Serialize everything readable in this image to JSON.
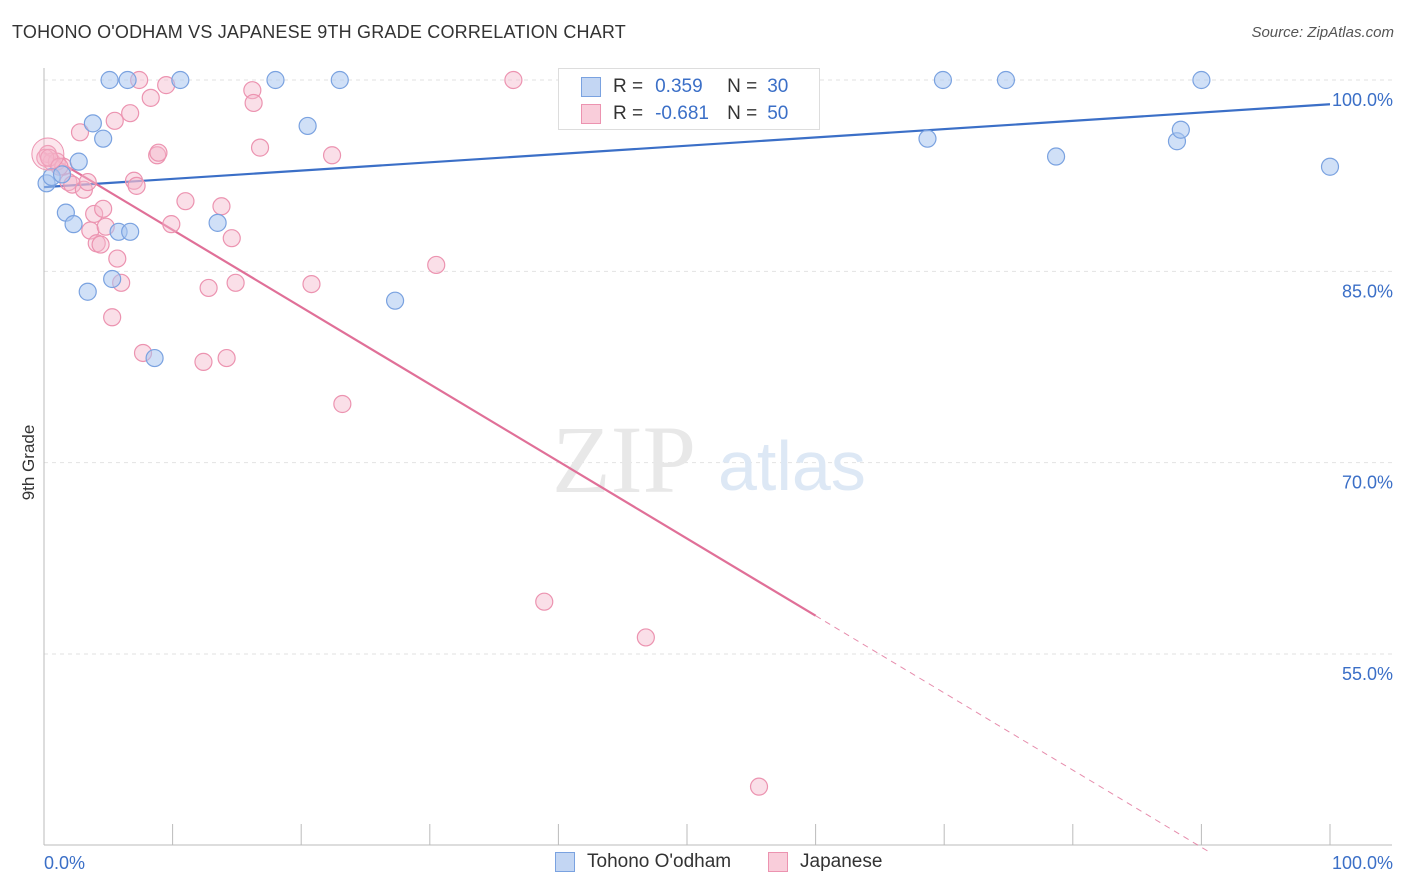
{
  "title": "TOHONO O'ODHAM VS JAPANESE 9TH GRADE CORRELATION CHART",
  "source": "Source: ZipAtlas.com",
  "legend": {
    "series1": {
      "r_label": "R =",
      "r_value": "0.359",
      "n_label": "N =",
      "n_value": "30"
    },
    "series2": {
      "r_label": "R =",
      "r_value": "-0.681",
      "n_label": "N =",
      "n_value": "50"
    }
  },
  "bottom_legend": {
    "series1": "Tohono O'odham",
    "series2": "Japanese"
  },
  "watermark": {
    "zip": "ZIP",
    "atlas": "atlas"
  },
  "colors": {
    "blue": "#3b6fc7",
    "blue_fill": "#aac6f0",
    "pink": "#e07098",
    "pink_fill": "#f5b8cb"
  },
  "chart_data": {
    "type": "scatter",
    "title": "TOHONO O'ODHAM VS JAPANESE 9TH GRADE CORRELATION CHART",
    "xlabel": "",
    "ylabel": "9th Grade",
    "xlim": [
      0,
      100
    ],
    "ylim": [
      40,
      101
    ],
    "x_tick_labels": [
      "0.0%",
      "100.0%"
    ],
    "y_ticks": [
      {
        "value": 100,
        "label": "100.0%"
      },
      {
        "value": 85,
        "label": "85.0%"
      },
      {
        "value": 70,
        "label": "70.0%"
      },
      {
        "value": 55,
        "label": "55.0%"
      }
    ],
    "grid": true,
    "series": [
      {
        "name": "Tohono O'odham",
        "color": "#3b6fc7",
        "trend": {
          "x0": 0,
          "y0": 91.6,
          "x1": 100,
          "y1": 98.1,
          "solid_until": 100
        },
        "points": [
          [
            0.2,
            91.9
          ],
          [
            0.6,
            92.4
          ],
          [
            1.4,
            92.6
          ],
          [
            2.7,
            93.6
          ],
          [
            1.7,
            89.6
          ],
          [
            2.3,
            88.7
          ],
          [
            3.8,
            96.6
          ],
          [
            4.6,
            95.4
          ],
          [
            5.1,
            100
          ],
          [
            6.5,
            100
          ],
          [
            5.3,
            84.4
          ],
          [
            3.4,
            83.4
          ],
          [
            5.8,
            88.1
          ],
          [
            6.7,
            88.1
          ],
          [
            8.6,
            78.2
          ],
          [
            10.6,
            100
          ],
          [
            13.5,
            88.8
          ],
          [
            18.0,
            100
          ],
          [
            20.5,
            96.4
          ],
          [
            23.0,
            100
          ],
          [
            27.3,
            82.7
          ],
          [
            47.5,
            100
          ],
          [
            68.7,
            95.4
          ],
          [
            69.9,
            100
          ],
          [
            74.8,
            100
          ],
          [
            78.7,
            94.0
          ],
          [
            88.1,
            95.2
          ],
          [
            88.4,
            96.1
          ],
          [
            90.0,
            100
          ],
          [
            100,
            93.2
          ]
        ]
      },
      {
        "name": "Japanese",
        "color": "#e07098",
        "trend": {
          "x0": 0,
          "y0": 94.3,
          "x1": 100,
          "y1": 33.8,
          "solid_until": 60
        },
        "points": [
          [
            0.3,
            94.2
          ],
          [
            0.6,
            93.6
          ],
          [
            1.0,
            93.6
          ],
          [
            1.5,
            93.2
          ],
          [
            1.9,
            92.0
          ],
          [
            2.2,
            91.8
          ],
          [
            2.8,
            95.9
          ],
          [
            3.1,
            91.4
          ],
          [
            3.4,
            92.0
          ],
          [
            3.6,
            88.2
          ],
          [
            3.9,
            89.5
          ],
          [
            4.1,
            87.2
          ],
          [
            4.4,
            87.1
          ],
          [
            4.6,
            89.9
          ],
          [
            4.8,
            88.5
          ],
          [
            5.3,
            81.4
          ],
          [
            5.5,
            96.8
          ],
          [
            5.7,
            86.0
          ],
          [
            6.0,
            84.1
          ],
          [
            6.7,
            97.4
          ],
          [
            7.0,
            92.1
          ],
          [
            7.2,
            91.7
          ],
          [
            7.4,
            100
          ],
          [
            7.7,
            78.6
          ],
          [
            8.3,
            98.6
          ],
          [
            8.8,
            94.1
          ],
          [
            8.9,
            94.3
          ],
          [
            9.5,
            99.6
          ],
          [
            9.9,
            88.7
          ],
          [
            11.0,
            90.5
          ],
          [
            12.4,
            77.9
          ],
          [
            12.8,
            83.7
          ],
          [
            13.8,
            90.1
          ],
          [
            14.2,
            78.2
          ],
          [
            14.6,
            87.6
          ],
          [
            14.9,
            84.1
          ],
          [
            16.2,
            99.2
          ],
          [
            16.3,
            98.2
          ],
          [
            16.8,
            94.7
          ],
          [
            20.8,
            84.0
          ],
          [
            22.4,
            94.1
          ],
          [
            23.2,
            74.6
          ],
          [
            30.5,
            85.5
          ],
          [
            36.5,
            100
          ],
          [
            38.9,
            59.1
          ],
          [
            46.8,
            56.3
          ],
          [
            55.6,
            44.6
          ],
          [
            0.1,
            93.9
          ],
          [
            0.4,
            93.9
          ],
          [
            1.2,
            93.2
          ]
        ]
      }
    ]
  }
}
